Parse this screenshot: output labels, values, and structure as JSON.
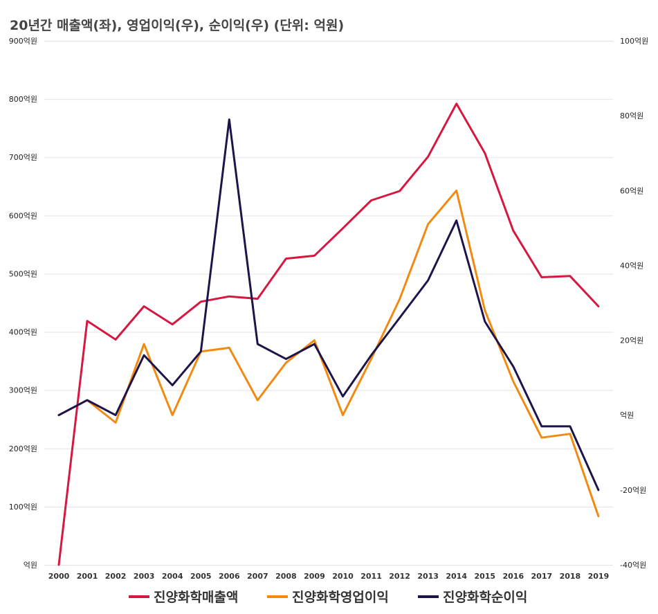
{
  "chart_data": {
    "type": "line",
    "title": "20년간 매출액(좌), 영업이익(우), 순이익(우) (단위: 억원)",
    "x": [
      "2000",
      "2001",
      "2002",
      "2003",
      "2004",
      "2005",
      "2006",
      "2007",
      "2008",
      "2009",
      "2010",
      "2011",
      "2012",
      "2013",
      "2014",
      "2015",
      "2016",
      "2017",
      "2018",
      "2019"
    ],
    "y_left": {
      "ylim": [
        0,
        900
      ],
      "ticks": [
        0,
        100,
        200,
        300,
        400,
        500,
        600,
        700,
        800,
        900
      ],
      "tick_labels": [
        "억원",
        "100억원",
        "200억원",
        "300억원",
        "400억원",
        "500억원",
        "600억원",
        "700억원",
        "800억원",
        "900억원"
      ]
    },
    "y_right": {
      "ylim": [
        -40,
        100
      ],
      "ticks": [
        -40,
        -20,
        0,
        20,
        40,
        60,
        80,
        100
      ],
      "tick_labels": [
        "-40억원",
        "-20억원",
        "억원",
        "20억원",
        "40억원",
        "60억원",
        "80억원",
        "100억원"
      ]
    },
    "grid": true,
    "legend": "bottom",
    "series": [
      {
        "name": "진양화학매출액",
        "axis": "left",
        "color": "#d6173f",
        "values": [
          0,
          419,
          387,
          444,
          413,
          452,
          461,
          457,
          526,
          531,
          578,
          626,
          642,
          701,
          792,
          707,
          574,
          494,
          496,
          444
        ]
      },
      {
        "name": "진양화학영업이익",
        "axis": "right",
        "color": "#f28a12",
        "values": [
          0,
          4,
          -2,
          19,
          0,
          17,
          18,
          4,
          14,
          20,
          0,
          15,
          31,
          51,
          60,
          28,
          9,
          -6,
          -5,
          -27
        ]
      },
      {
        "name": "진양화학순이익",
        "axis": "right",
        "color": "#1d1549",
        "values": [
          0,
          4,
          0,
          16,
          8,
          17,
          79,
          19,
          15,
          19,
          5,
          16,
          26,
          36,
          52,
          25,
          13,
          -3,
          -3,
          -20
        ]
      }
    ]
  }
}
